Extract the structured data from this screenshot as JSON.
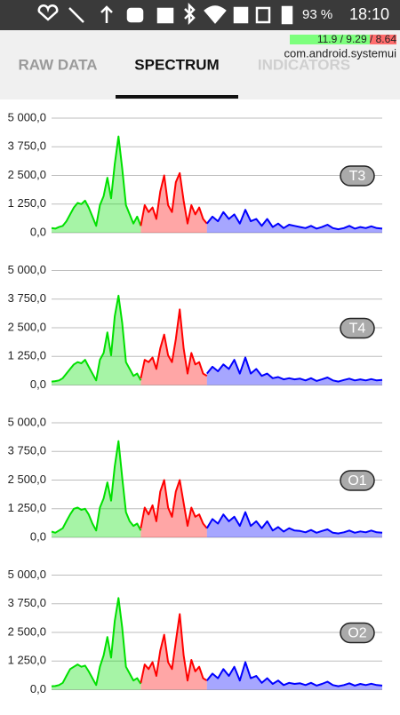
{
  "status_bar": {
    "battery": "93 %",
    "time": "18:10",
    "overlay_stats": "11.9 / 9.29 / 8.64",
    "overlay_app": "com.android.systemui"
  },
  "tabs": [
    "RAW DATA",
    "SPECTRUM",
    "INDICATORS"
  ],
  "chart_data": [
    {
      "type": "line",
      "title": "T3",
      "ylim": [
        0,
        5000
      ],
      "yticks": [
        {
          "value": 0,
          "label": "0,0"
        },
        {
          "value": 1250,
          "label": "1 250,0"
        },
        {
          "value": 2500,
          "label": "2 500,0"
        },
        {
          "value": 3750,
          "label": "3 750,0"
        },
        {
          "value": 5000,
          "label": "5 000,0"
        }
      ],
      "grid": true,
      "series": [
        {
          "color": "#00e000",
          "values": [
            200,
            180,
            250,
            300,
            500,
            800,
            1100,
            1300,
            1250,
            1400,
            1100,
            700,
            300,
            1200,
            1600,
            2400,
            1500,
            3000,
            4200,
            2800,
            1200,
            800,
            400,
            700,
            300
          ]
        },
        {
          "color": "#ff0000",
          "values": [
            300,
            1200,
            900,
            1100,
            600,
            1800,
            2500,
            1200,
            900,
            2200,
            2600,
            1400,
            400,
            1200,
            800,
            1100,
            600,
            400
          ]
        },
        {
          "color": "#0000ff",
          "values": [
            400,
            700,
            500,
            900,
            600,
            800,
            400,
            1000,
            500,
            600,
            300,
            600,
            250,
            400,
            200,
            350,
            300,
            250,
            200,
            300,
            180,
            250,
            350,
            200,
            150,
            200,
            300,
            180,
            250,
            200,
            280,
            200,
            180
          ]
        }
      ]
    },
    {
      "type": "line",
      "title": "T4",
      "ylim": [
        0,
        5000
      ],
      "yticks": [
        {
          "value": 0,
          "label": "0,0"
        },
        {
          "value": 1250,
          "label": "1 250,0"
        },
        {
          "value": 2500,
          "label": "2 500,0"
        },
        {
          "value": 3750,
          "label": "3 750,0"
        },
        {
          "value": 5000,
          "label": "5 000,0"
        }
      ],
      "grid": true,
      "series": [
        {
          "color": "#00e000",
          "values": [
            150,
            170,
            200,
            300,
            500,
            700,
            900,
            1000,
            950,
            1100,
            800,
            500,
            200,
            1100,
            1400,
            2300,
            1300,
            3000,
            3900,
            2700,
            1000,
            700,
            400,
            500,
            200
          ]
        },
        {
          "color": "#ff0000",
          "values": [
            300,
            1100,
            1000,
            1200,
            700,
            1600,
            2200,
            1300,
            1000,
            2000,
            3300,
            1600,
            500,
            1400,
            900,
            1000,
            500,
            400
          ]
        },
        {
          "color": "#0000ff",
          "values": [
            500,
            800,
            600,
            900,
            700,
            1100,
            500,
            1200,
            500,
            700,
            400,
            500,
            300,
            350,
            250,
            300,
            250,
            280,
            200,
            300,
            180,
            250,
            330,
            200,
            150,
            220,
            280,
            200,
            250,
            200,
            260,
            200,
            220
          ]
        }
      ]
    },
    {
      "type": "line",
      "title": "O1",
      "ylim": [
        0,
        5000
      ],
      "yticks": [
        {
          "value": 0,
          "label": "0,0"
        },
        {
          "value": 1250,
          "label": "1 250,0"
        },
        {
          "value": 2500,
          "label": "2 500,0"
        },
        {
          "value": 3750,
          "label": "3 750,0"
        },
        {
          "value": 5000,
          "label": "5 000,0"
        }
      ],
      "grid": true,
      "series": [
        {
          "color": "#00e000",
          "values": [
            250,
            200,
            300,
            400,
            700,
            1000,
            1250,
            1300,
            1200,
            1250,
            1000,
            600,
            300,
            1300,
            1700,
            2400,
            1600,
            3100,
            4200,
            2600,
            1100,
            700,
            500,
            600,
            300
          ]
        },
        {
          "color": "#ff0000",
          "values": [
            400,
            1300,
            1000,
            1400,
            700,
            2000,
            2500,
            1300,
            900,
            2000,
            2500,
            1500,
            500,
            1300,
            900,
            1000,
            600,
            400
          ]
        },
        {
          "color": "#0000ff",
          "values": [
            400,
            800,
            600,
            1000,
            700,
            900,
            500,
            1100,
            500,
            700,
            400,
            700,
            300,
            450,
            250,
            400,
            300,
            280,
            220,
            320,
            200,
            280,
            350,
            200,
            170,
            220,
            300,
            200,
            260,
            220,
            300,
            220,
            200
          ]
        }
      ]
    },
    {
      "type": "line",
      "title": "O2",
      "ylim": [
        0,
        5000
      ],
      "yticks": [
        {
          "value": 0,
          "label": "0,0"
        },
        {
          "value": 1250,
          "label": "1 250,0"
        },
        {
          "value": 2500,
          "label": "2 500,0"
        },
        {
          "value": 3750,
          "label": "3 750,0"
        },
        {
          "value": 5000,
          "label": "5 000,0"
        }
      ],
      "grid": true,
      "series": [
        {
          "color": "#00e000",
          "values": [
            150,
            160,
            200,
            300,
            600,
            900,
            1000,
            1100,
            1000,
            1050,
            800,
            500,
            200,
            1000,
            1500,
            2300,
            1400,
            3000,
            4000,
            2700,
            1000,
            700,
            400,
            500,
            250
          ]
        },
        {
          "color": "#ff0000",
          "values": [
            300,
            1100,
            900,
            1200,
            600,
            1700,
            2400,
            1200,
            900,
            2100,
            3300,
            1500,
            400,
            1300,
            800,
            1000,
            500,
            400
          ]
        },
        {
          "color": "#0000ff",
          "values": [
            400,
            700,
            500,
            900,
            600,
            1000,
            400,
            1200,
            500,
            600,
            300,
            500,
            250,
            400,
            200,
            300,
            250,
            280,
            200,
            300,
            180,
            250,
            350,
            200,
            150,
            200,
            280,
            180,
            250,
            200,
            260,
            200,
            180
          ]
        }
      ]
    }
  ]
}
